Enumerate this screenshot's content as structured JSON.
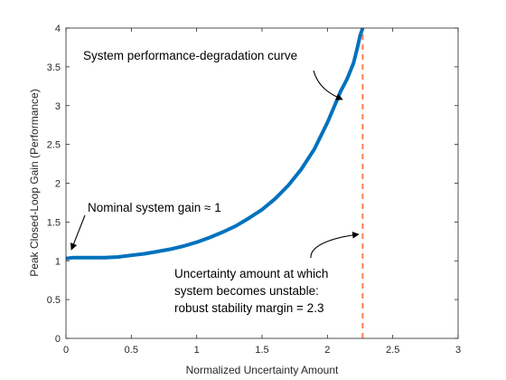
{
  "chart_data": {
    "type": "line",
    "xlabel": "Normalized Uncertainty Amount",
    "ylabel": "Peak Closed-Loop Gain (Performance)",
    "xlim": [
      0,
      3
    ],
    "ylim": [
      0,
      4
    ],
    "xticks": [
      "0",
      "0.5",
      "1",
      "1.5",
      "2",
      "2.5",
      "3"
    ],
    "yticks": [
      "0",
      "0.5",
      "1",
      "1.5",
      "2",
      "2.5",
      "3",
      "3.5",
      "4"
    ],
    "grid": false,
    "series": [
      {
        "color": "#0072bd",
        "x": [
          0,
          0.05,
          0.1,
          0.2,
          0.3,
          0.4,
          0.5,
          0.6,
          0.7,
          0.8,
          0.9,
          1.0,
          1.1,
          1.2,
          1.3,
          1.4,
          1.5,
          1.6,
          1.7,
          1.8,
          1.9,
          2.0,
          2.05,
          2.1,
          2.15,
          2.2,
          2.23,
          2.25,
          2.27
        ],
        "y": [
          1.03,
          1.04,
          1.04,
          1.04,
          1.04,
          1.05,
          1.07,
          1.09,
          1.12,
          1.15,
          1.19,
          1.24,
          1.3,
          1.37,
          1.45,
          1.55,
          1.66,
          1.8,
          1.97,
          2.18,
          2.44,
          2.78,
          2.98,
          3.18,
          3.34,
          3.55,
          3.75,
          3.9,
          4.0
        ]
      }
    ],
    "reference_line": {
      "x": 2.27,
      "style": "dashed",
      "color": "#ff7f50"
    },
    "annotations": [
      {
        "text": "System performance-degradation curve",
        "target": [
          2.2,
          3.3
        ]
      },
      {
        "text": "Nominal system gain ≈ 1",
        "target": [
          0.03,
          1.07
        ]
      },
      {
        "lines": [
          "Uncertainty amount at which",
          "system becomes unstable:",
          "robust stability margin = 2.3"
        ],
        "target": [
          2.27,
          1.35
        ]
      }
    ]
  }
}
